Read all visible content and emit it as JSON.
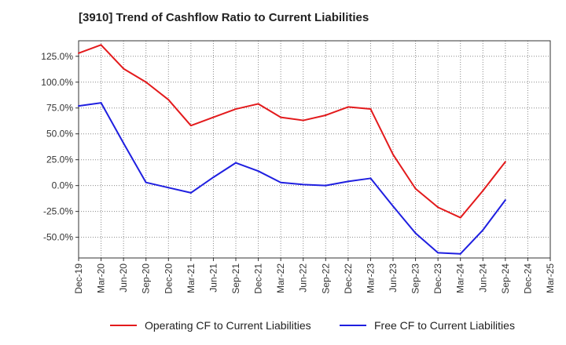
{
  "chart_data": {
    "type": "line",
    "title": "[3910]  Trend of Cashflow Ratio to Current Liabilities",
    "xlabel": "",
    "ylabel": "",
    "x": [
      "Dec-19",
      "Mar-20",
      "Jun-20",
      "Sep-20",
      "Dec-20",
      "Mar-21",
      "Jun-21",
      "Sep-21",
      "Dec-21",
      "Mar-22",
      "Jun-22",
      "Sep-22",
      "Dec-22",
      "Mar-23",
      "Jun-23",
      "Sep-23",
      "Dec-23",
      "Mar-24",
      "Jun-24",
      "Sep-24",
      "Dec-24",
      "Mar-25"
    ],
    "ylim": [
      -70,
      140
    ],
    "yticks": [
      -50,
      -25,
      0,
      25,
      50,
      75,
      100,
      125
    ],
    "ytick_labels": [
      "-50.0%",
      "-25.0%",
      "0.0%",
      "25.0%",
      "50.0%",
      "75.0%",
      "100.0%",
      "125.0%"
    ],
    "grid": true,
    "legend_position": "bottom",
    "series": [
      {
        "name": "Operating CF to Current Liabilities",
        "color": "#e31a1c",
        "values": [
          128,
          136,
          113,
          100,
          83,
          58,
          66,
          74,
          79,
          66,
          63,
          68,
          76,
          74,
          30,
          -3,
          -21,
          -31,
          -5,
          23,
          null,
          null
        ]
      },
      {
        "name": "Free CF to Current Liabilities",
        "color": "#1f1fe0",
        "values": [
          77,
          80,
          41,
          3,
          -2,
          -7,
          8,
          22,
          14,
          3,
          1,
          0,
          4,
          7,
          -20,
          -46,
          -65,
          -66,
          -43,
          -14,
          null,
          null
        ]
      }
    ]
  }
}
